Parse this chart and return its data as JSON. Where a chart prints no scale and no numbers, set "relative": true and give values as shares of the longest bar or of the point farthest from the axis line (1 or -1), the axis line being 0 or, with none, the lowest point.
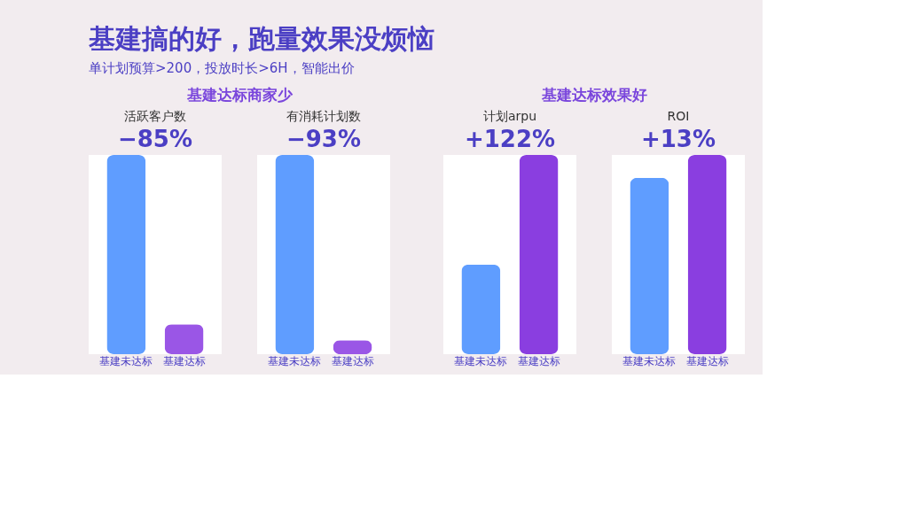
{
  "chart_data": [
    {
      "type": "other",
      "title": "基建搞的好，跑量效果没烦恼",
      "subtitle": "单计划预算>200，投放时长>6H，智能出价",
      "annotations": [
        "基建达标商家少",
        "基建达标效果好"
      ]
    },
    {
      "type": "bar",
      "relative": true,
      "title": "活跃客户数",
      "annotations": [
        "−85%"
      ],
      "categories": [
        "基建未达标",
        "基建达标"
      ],
      "values": [
        1,
        0.15
      ],
      "colors": [
        "#5f9dff",
        "#9a56e6"
      ]
    },
    {
      "type": "bar",
      "relative": true,
      "title": "有消耗计划数",
      "annotations": [
        "−93%"
      ],
      "categories": [
        "基建未达标",
        "基建达标"
      ],
      "values": [
        1,
        0.07
      ],
      "colors": [
        "#5f9dff",
        "#9a56e6"
      ]
    },
    {
      "type": "bar",
      "relative": true,
      "title": "计划arpu",
      "annotations": [
        "+122%"
      ],
      "categories": [
        "基建未达标",
        "基建达标"
      ],
      "values": [
        0.45,
        1
      ],
      "colors": [
        "#5f9dff",
        "#8a3ee0"
      ]
    },
    {
      "type": "bar",
      "relative": true,
      "title": "ROI",
      "annotations": [
        "+13%"
      ],
      "categories": [
        "基建未达标",
        "基建达标"
      ],
      "values": [
        0.885,
        1
      ],
      "colors": [
        "#5f9dff",
        "#8a3ee0"
      ]
    }
  ]
}
